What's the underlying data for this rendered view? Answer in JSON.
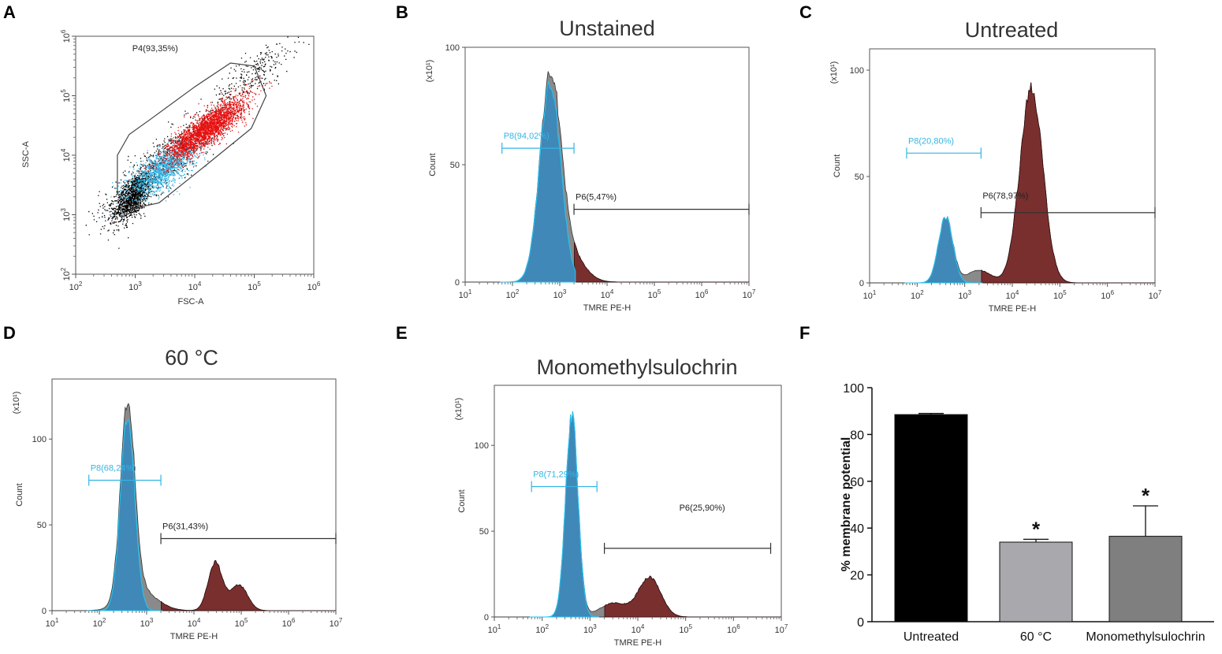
{
  "chart_data": [
    {
      "panel": "A",
      "type": "scatter",
      "title": "",
      "xlabel": "FSC-A",
      "ylabel": "SSC-A",
      "xscale": "log",
      "yscale": "log",
      "xlim": [
        100,
        1000000
      ],
      "ylim": [
        100,
        1000000
      ],
      "gate": {
        "name": "P4",
        "label": "P4(93,35%)",
        "percent": 93.35
      },
      "populations": [
        {
          "name": "ungated",
          "color": "#000000"
        },
        {
          "name": "P8",
          "color": "#33b5e5"
        },
        {
          "name": "P6",
          "color": "#e81010"
        }
      ]
    },
    {
      "panel": "B",
      "type": "area",
      "title": "Unstained",
      "xlabel": "TMRE PE-H",
      "ylabel": "Count",
      "y_multiplier": "(x10¹)",
      "xscale": "log",
      "xlim": [
        10,
        10000000
      ],
      "ylim": [
        0,
        100
      ],
      "yticks": [
        0,
        50,
        100
      ],
      "peaks": [
        {
          "pop": "P8",
          "center_log": 2.8,
          "sigma": 0.22,
          "height": 85
        },
        {
          "pop": "P6",
          "center_log": 3.2,
          "sigma": 0.3,
          "height": 12
        }
      ],
      "gates": [
        {
          "name": "P8",
          "label": "P8(94,02%)",
          "percent": 94.02,
          "from": 60,
          "to": 2000,
          "level": 57
        },
        {
          "name": "P6",
          "label": "P6(5,47%)",
          "percent": 5.47,
          "from": 2000,
          "to": 10000000,
          "level": 31
        }
      ]
    },
    {
      "panel": "C",
      "type": "area",
      "title": "Untreated",
      "xlabel": "TMRE PE-H",
      "ylabel": "Count",
      "y_multiplier": "(x10¹)",
      "xscale": "log",
      "xlim": [
        10,
        10000000
      ],
      "ylim": [
        0,
        110
      ],
      "yticks": [
        0,
        50,
        100
      ],
      "peaks": [
        {
          "pop": "P8",
          "center_log": 2.6,
          "sigma": 0.15,
          "height": 31
        },
        {
          "pop": "mid",
          "center_log": 3.3,
          "sigma": 0.25,
          "height": 6
        },
        {
          "pop": "P6",
          "center_log": 4.4,
          "sigma": 0.24,
          "height": 92
        }
      ],
      "gates": [
        {
          "name": "P8",
          "label": "P8(20,80%)",
          "percent": 20.8,
          "from": 60,
          "to": 2200,
          "level": 61
        },
        {
          "name": "P6",
          "label": "P6(78,97%)",
          "percent": 78.97,
          "from": 2200,
          "to": 10000000,
          "level": 33
        }
      ]
    },
    {
      "panel": "D",
      "type": "area",
      "title": "60 °C",
      "xlabel": "TMRE PE-H",
      "ylabel": "Count",
      "y_multiplier": "(x10¹)",
      "xscale": "log",
      "xlim": [
        10,
        10000000
      ],
      "ylim": [
        0,
        135
      ],
      "yticks": [
        0,
        50,
        100
      ],
      "peaks": [
        {
          "pop": "P8",
          "center_log": 2.6,
          "sigma": 0.15,
          "height": 113
        },
        {
          "pop": "mid",
          "center_log": 2.85,
          "sigma": 0.35,
          "height": 12
        },
        {
          "pop": "P6",
          "center_log": 4.45,
          "sigma": 0.15,
          "height": 28
        },
        {
          "pop": "P6",
          "center_log": 4.95,
          "sigma": 0.18,
          "height": 15
        }
      ],
      "gates": [
        {
          "name": "P8",
          "label": "P8(68,24%)",
          "percent": 68.24,
          "from": 60,
          "to": 2000,
          "level": 76
        },
        {
          "name": "P6",
          "label": "P6(31,43%)",
          "percent": 31.43,
          "from": 2000,
          "to": 10000000,
          "level": 42
        }
      ]
    },
    {
      "panel": "E",
      "type": "area",
      "title": "Monomethylsulochrin",
      "xlabel": "TMRE PE-H",
      "ylabel": "Count",
      "y_multiplier": "(x10¹)",
      "xscale": "log",
      "xlim": [
        10,
        10000000
      ],
      "ylim": [
        0,
        135
      ],
      "yticks": [
        0,
        50,
        100
      ],
      "peaks": [
        {
          "pop": "P8",
          "center_log": 2.62,
          "sigma": 0.13,
          "height": 118
        },
        {
          "pop": "mid",
          "center_log": 3.5,
          "sigma": 0.3,
          "height": 8
        },
        {
          "pop": "P6",
          "center_log": 4.25,
          "sigma": 0.23,
          "height": 23
        }
      ],
      "gates": [
        {
          "name": "P8",
          "label": "P8(71,29%)",
          "percent": 71.29,
          "from": 60,
          "to": 1400,
          "level": 76
        },
        {
          "name": "P6",
          "label": "P6(25,90%)",
          "percent": 25.9,
          "from": 2000,
          "to": 6000000,
          "level": 40
        }
      ]
    },
    {
      "panel": "F",
      "type": "bar",
      "title": "",
      "categories": [
        "Untreated",
        "60 °C",
        "Monomethylsulochrin"
      ],
      "values": [
        88.5,
        34,
        36.5
      ],
      "errors": [
        0.5,
        1.2,
        13
      ],
      "significance": [
        "",
        "*",
        "*"
      ],
      "colors": [
        "#000000",
        "#a8a8ad",
        "#7f7f7f"
      ],
      "xlabel": "",
      "ylabel": "% membrane potential",
      "ylim": [
        0,
        100
      ],
      "yticks": [
        0,
        20,
        40,
        60,
        80,
        100
      ]
    }
  ]
}
